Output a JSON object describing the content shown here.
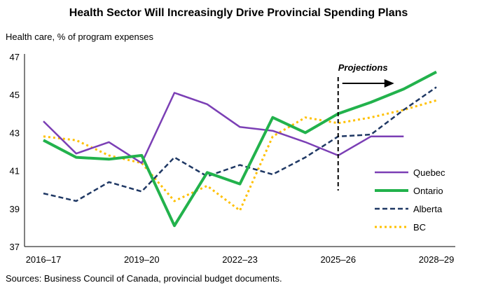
{
  "chart_data": {
    "type": "line",
    "title": "Health Sector Will Increasingly Drive Provincial Spending Plans",
    "ylabel": "Health care, % of program expenses",
    "source": "Sources: Business Council of Canada, provincial budget documents.",
    "ylim": [
      37,
      47
    ],
    "yticks": [
      37,
      39,
      41,
      43,
      45,
      47
    ],
    "x": [
      "2016–17",
      "2017–18",
      "2018–19",
      "2019–20",
      "2020–21",
      "2021–22",
      "2022–23",
      "2023–24",
      "2024–25",
      "2025–26",
      "2026–27",
      "2027–28",
      "2028–29"
    ],
    "xtick_labels": [
      "2016–17",
      "2019–20",
      "2022–23",
      "2025–26",
      "2028–29"
    ],
    "annotation": {
      "label": "Projections",
      "at": "2025–26"
    },
    "grid": false,
    "legend_position": "right",
    "series": [
      {
        "name": "Quebec",
        "color": "#7B3FB5",
        "style": "solid",
        "values": [
          43.6,
          41.9,
          42.5,
          41.4,
          45.1,
          44.5,
          43.3,
          43.1,
          42.5,
          41.8,
          42.8,
          42.8,
          null
        ]
      },
      {
        "name": "Ontario",
        "color": "#22B24C",
        "style": "solid-thick",
        "values": [
          42.6,
          41.7,
          41.6,
          41.8,
          38.1,
          40.9,
          40.3,
          43.8,
          43.0,
          44.0,
          44.6,
          45.3,
          46.2
        ]
      },
      {
        "name": "Alberta",
        "color": "#1F3864",
        "style": "dashed",
        "values": [
          39.8,
          39.4,
          40.4,
          39.9,
          41.7,
          40.7,
          41.3,
          40.8,
          41.7,
          42.8,
          42.9,
          44.2,
          45.4
        ]
      },
      {
        "name": "BC",
        "color": "#FFC000",
        "style": "dotted",
        "values": [
          42.8,
          42.6,
          41.8,
          41.4,
          39.4,
          40.2,
          38.9,
          42.8,
          43.8,
          43.5,
          43.8,
          44.2,
          44.7
        ]
      }
    ]
  }
}
